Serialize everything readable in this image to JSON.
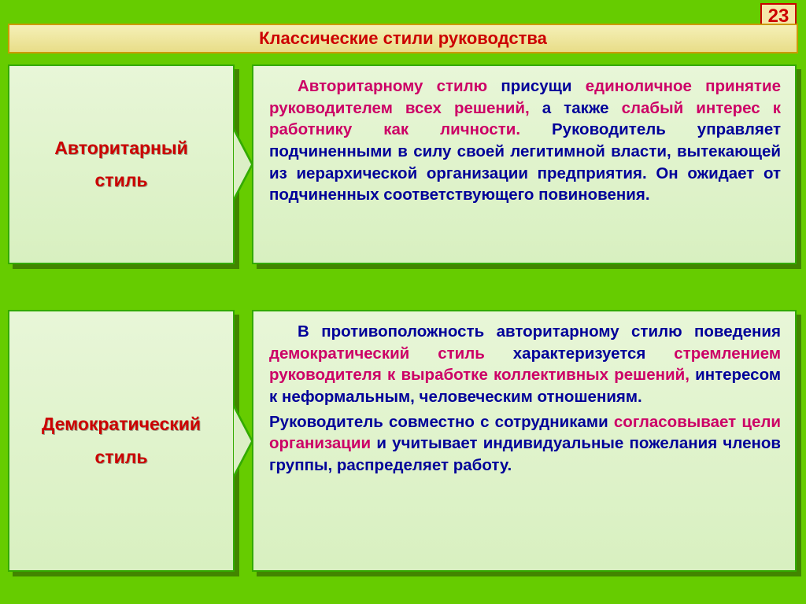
{
  "page_number": "23",
  "title": "Классические стили руководства",
  "colors": {
    "background": "#66cc00",
    "panel_gradient_top": "#e8f6d8",
    "panel_gradient_bottom": "#d8f0c0",
    "panel_border": "#33aa00",
    "title_bg_top": "#f5f0b8",
    "title_bg_bottom": "#e8dd88",
    "title_border": "#cc9900",
    "heading_text": "#cc0000",
    "body_text": "#000099",
    "highlight_text": "#cc0066",
    "pagenum_bg": "#f5e7a8",
    "pagenum_border": "#cc0000"
  },
  "sections": [
    {
      "label_line1": "Авторитарный",
      "label_line2": "стиль",
      "body": {
        "r1": "Авторитарному стилю",
        "p1": " присущи ",
        "r2": "единоличное принятие руководителем всех решений,",
        "p2": " а также ",
        "r3": "слабый интерес к работнику как личности.",
        "p3": " Руководитель управляет подчиненными в силу своей легитимной власти, вытекающей из иерархической организации предприятия. Он ожидает от подчиненных соответствующего повиновения."
      }
    },
    {
      "label_line1": "Демократический",
      "label_line2": "стиль",
      "body": {
        "p1a": "В противоположность авторитарному стилю поведения ",
        "r1": "демократический стиль",
        "p1b": " характеризуется ",
        "r2": "стремлением руководителя к выработке коллективных решений,",
        "p1c": " интересом к неформальным, человеческим отношениям.",
        "p2a": "Руководитель совместно с сотрудниками ",
        "r3": "согласовывает цели организации",
        "p2b": " и учитывает индивидуальные пожелания членов группы, распределяет работу."
      }
    }
  ]
}
